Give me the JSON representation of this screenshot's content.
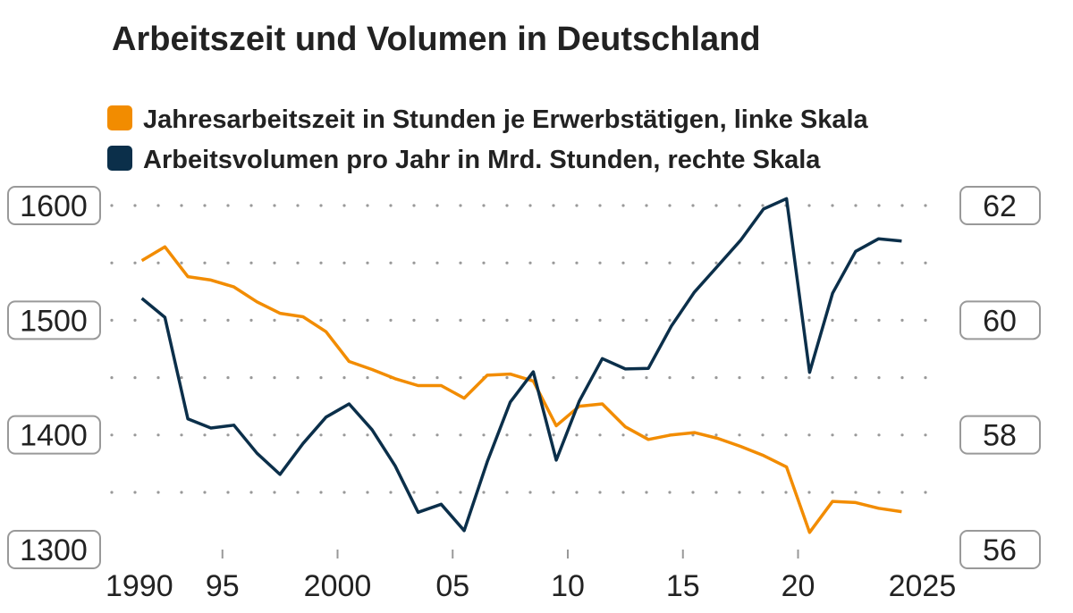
{
  "chart_data": {
    "type": "line",
    "title": "Arbeitszeit und Volumen in Deutschland",
    "x": [
      1991,
      1992,
      1993,
      1994,
      1995,
      1996,
      1997,
      1998,
      1999,
      2000,
      2001,
      2002,
      2003,
      2004,
      2005,
      2006,
      2007,
      2008,
      2009,
      2010,
      2011,
      2012,
      2013,
      2014,
      2015,
      2016,
      2017,
      2018,
      2019,
      2020,
      2021,
      2022,
      2023,
      2024
    ],
    "x_ticks": [
      1990,
      1995,
      2000,
      2005,
      2010,
      2015,
      2020,
      2025
    ],
    "x_tick_labels": [
      "1990",
      "95",
      "2000",
      "05",
      "10",
      "15",
      "20",
      "2025"
    ],
    "xlim": [
      1990,
      2025
    ],
    "y_left": {
      "lim": [
        1300,
        1600
      ],
      "ticks": [
        "1300",
        "1400",
        "1500",
        "1600"
      ]
    },
    "y_right": {
      "lim": [
        56,
        62
      ],
      "ticks": [
        "56",
        "58",
        "60",
        "62"
      ]
    },
    "grid": "dotted horizontal",
    "legend_position": "top",
    "series": [
      {
        "name": "Jahresarbeitszeit in Stunden je Erwerbstätigen, linke Skala",
        "axis": "left",
        "color": "#f28c00",
        "values": [
          1552,
          1564,
          1538,
          1535,
          1529,
          1516,
          1506,
          1503,
          1490,
          1464,
          1457,
          1449,
          1443,
          1443,
          1432,
          1452,
          1453,
          1447,
          1408,
          1425,
          1427,
          1407,
          1396,
          1400,
          1402,
          1397,
          1390,
          1382,
          1372,
          1315,
          1342,
          1341,
          1336,
          1333
        ]
      },
      {
        "name": "Arbeitsvolumen pro Jahr in Mrd. Stunden, rechte Skala",
        "axis": "right",
        "color": "#0b2f4a",
        "values": [
          60.38,
          60.05,
          58.28,
          58.12,
          58.17,
          57.68,
          57.31,
          57.85,
          58.31,
          58.54,
          58.09,
          57.46,
          56.65,
          56.79,
          56.33,
          57.53,
          58.57,
          59.1,
          57.56,
          58.59,
          59.33,
          59.15,
          59.16,
          59.9,
          60.49,
          60.94,
          61.39,
          61.94,
          62.12,
          59.09,
          60.47,
          61.2,
          61.42,
          61.38
        ]
      }
    ]
  }
}
